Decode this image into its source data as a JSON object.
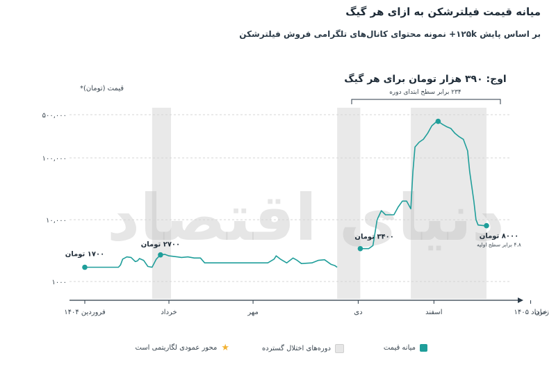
{
  "header": {
    "title": "میانه قیمت فیلترشکن به ازای هر گیگ",
    "subtitle": "بر اساس پایش ۱۲۵k+ نمونه محتوای کانال‌های تلگرامی فروش فیلترشکن"
  },
  "chart_data": {
    "type": "line",
    "title": "میانه قیمت فیلترشکن به ازای هر گیگ",
    "ylabel": "قیمت (تومان)*",
    "xlabel": "زمان",
    "y_scale": "log",
    "ylim": [
      1000,
      800000
    ],
    "y_ticks": [
      {
        "value": 1000,
        "label": "۱۰۰۰"
      },
      {
        "value": 10000,
        "label": "۱۰,۰۰۰"
      },
      {
        "value": 100000,
        "label": "۱۰۰,۰۰۰"
      },
      {
        "value": 500000,
        "label": "۵۰۰,۰۰۰"
      }
    ],
    "x_ticks": [
      {
        "t": 0,
        "label": "فروردین ۱۴۰۴"
      },
      {
        "t": 2,
        "label": "خرداد"
      },
      {
        "t": 4,
        "label": "مهر"
      },
      {
        "t": 6.5,
        "label": "دی"
      },
      {
        "t": 8.3,
        "label": "اسفند"
      },
      {
        "t": 10.6,
        "label": "خرداد ۱۴۰۵"
      }
    ],
    "disruption_periods": [
      [
        1.6,
        2.05
      ],
      [
        6.0,
        6.55
      ],
      [
        7.75,
        9.55
      ]
    ],
    "series": [
      {
        "name": "میانه قیمت",
        "color": "#1f9e9a",
        "segments": [
          [
            [
              0,
              1700
            ],
            [
              0.4,
              1700
            ],
            [
              0.8,
              1700
            ],
            [
              0.85,
              1850
            ],
            [
              0.9,
              2300
            ],
            [
              1.0,
              2500
            ],
            [
              1.1,
              2450
            ],
            [
              1.2,
              2100
            ],
            [
              1.25,
              2150
            ],
            [
              1.3,
              2350
            ],
            [
              1.4,
              2200
            ],
            [
              1.5,
              1750
            ],
            [
              1.6,
              1700
            ],
            [
              1.7,
              2300
            ],
            [
              1.8,
              2700
            ],
            [
              1.9,
              2750
            ],
            [
              2.0,
              2600
            ],
            [
              2.1,
              2550
            ],
            [
              2.2,
              2500
            ],
            [
              2.3,
              2450
            ],
            [
              2.45,
              2500
            ],
            [
              2.6,
              2400
            ],
            [
              2.75,
              2400
            ],
            [
              2.85,
              2000
            ],
            [
              3.0,
              2000
            ],
            [
              3.5,
              2000
            ],
            [
              4.0,
              2000
            ],
            [
              4.35,
              2000
            ],
            [
              4.5,
              2300
            ],
            [
              4.55,
              2600
            ],
            [
              4.65,
              2300
            ],
            [
              4.8,
              2000
            ],
            [
              4.95,
              2400
            ],
            [
              5.05,
              2200
            ],
            [
              5.15,
              1950
            ],
            [
              5.4,
              2000
            ],
            [
              5.55,
              2200
            ],
            [
              5.7,
              2250
            ],
            [
              5.85,
              1900
            ],
            [
              5.95,
              1800
            ],
            [
              6.0,
              1700
            ]
          ],
          [
            [
              6.55,
              3400
            ],
            [
              6.75,
              3400
            ],
            [
              6.85,
              3800
            ],
            [
              6.95,
              10000
            ],
            [
              7.05,
              14000
            ],
            [
              7.15,
              12000
            ],
            [
              7.35,
              12000
            ],
            [
              7.45,
              16000
            ],
            [
              7.55,
              20000
            ],
            [
              7.65,
              20000
            ],
            [
              7.75,
              15000
            ],
            [
              7.8,
              60000
            ],
            [
              7.85,
              150000
            ],
            [
              7.95,
              180000
            ],
            [
              8.05,
              200000
            ],
            [
              8.15,
              250000
            ],
            [
              8.25,
              330000
            ],
            [
              8.35,
              380000
            ],
            [
              8.4,
              390000
            ],
            [
              8.5,
              350000
            ],
            [
              8.6,
              320000
            ],
            [
              8.7,
              300000
            ],
            [
              8.8,
              250000
            ],
            [
              8.9,
              220000
            ],
            [
              9.0,
              200000
            ],
            [
              9.1,
              130000
            ],
            [
              9.15,
              60000
            ],
            [
              9.25,
              20000
            ],
            [
              9.3,
              10000
            ],
            [
              9.35,
              8200
            ],
            [
              9.5,
              8000
            ],
            [
              9.55,
              8000
            ]
          ]
        ]
      }
    ],
    "point_labels": [
      {
        "t": 0,
        "value": 1700,
        "label": "۱۷۰۰ تومان"
      },
      {
        "t": 1.8,
        "value": 2700,
        "label": "۲۷۰۰ تومان"
      },
      {
        "t": 6.55,
        "value": 3400,
        "label": "۳۴۰۰ تومان"
      },
      {
        "t": 9.55,
        "value": 8000,
        "label": "۸۰۰۰ تومان",
        "note": "۴.۸ برابر سطح اولیه"
      }
    ],
    "peak": {
      "t": 8.4,
      "value": 390000,
      "label": "اوج: ۳۹۰ هزار تومان برای هر گیگ",
      "note": "۲۳۴ برابر سطح ابتدای دوره"
    },
    "watermark": "دنیای اقتصاد",
    "legend": [
      {
        "label": "میانه قیمت",
        "kind": "swatch",
        "color": "#1f9e9a"
      },
      {
        "label": "دوره‌های اختلال گسترده",
        "kind": "swatch",
        "color": "#e6e6e6"
      },
      {
        "label": "محور عمودی لگاریتمی است",
        "kind": "star",
        "color": "#f2b233"
      }
    ]
  }
}
